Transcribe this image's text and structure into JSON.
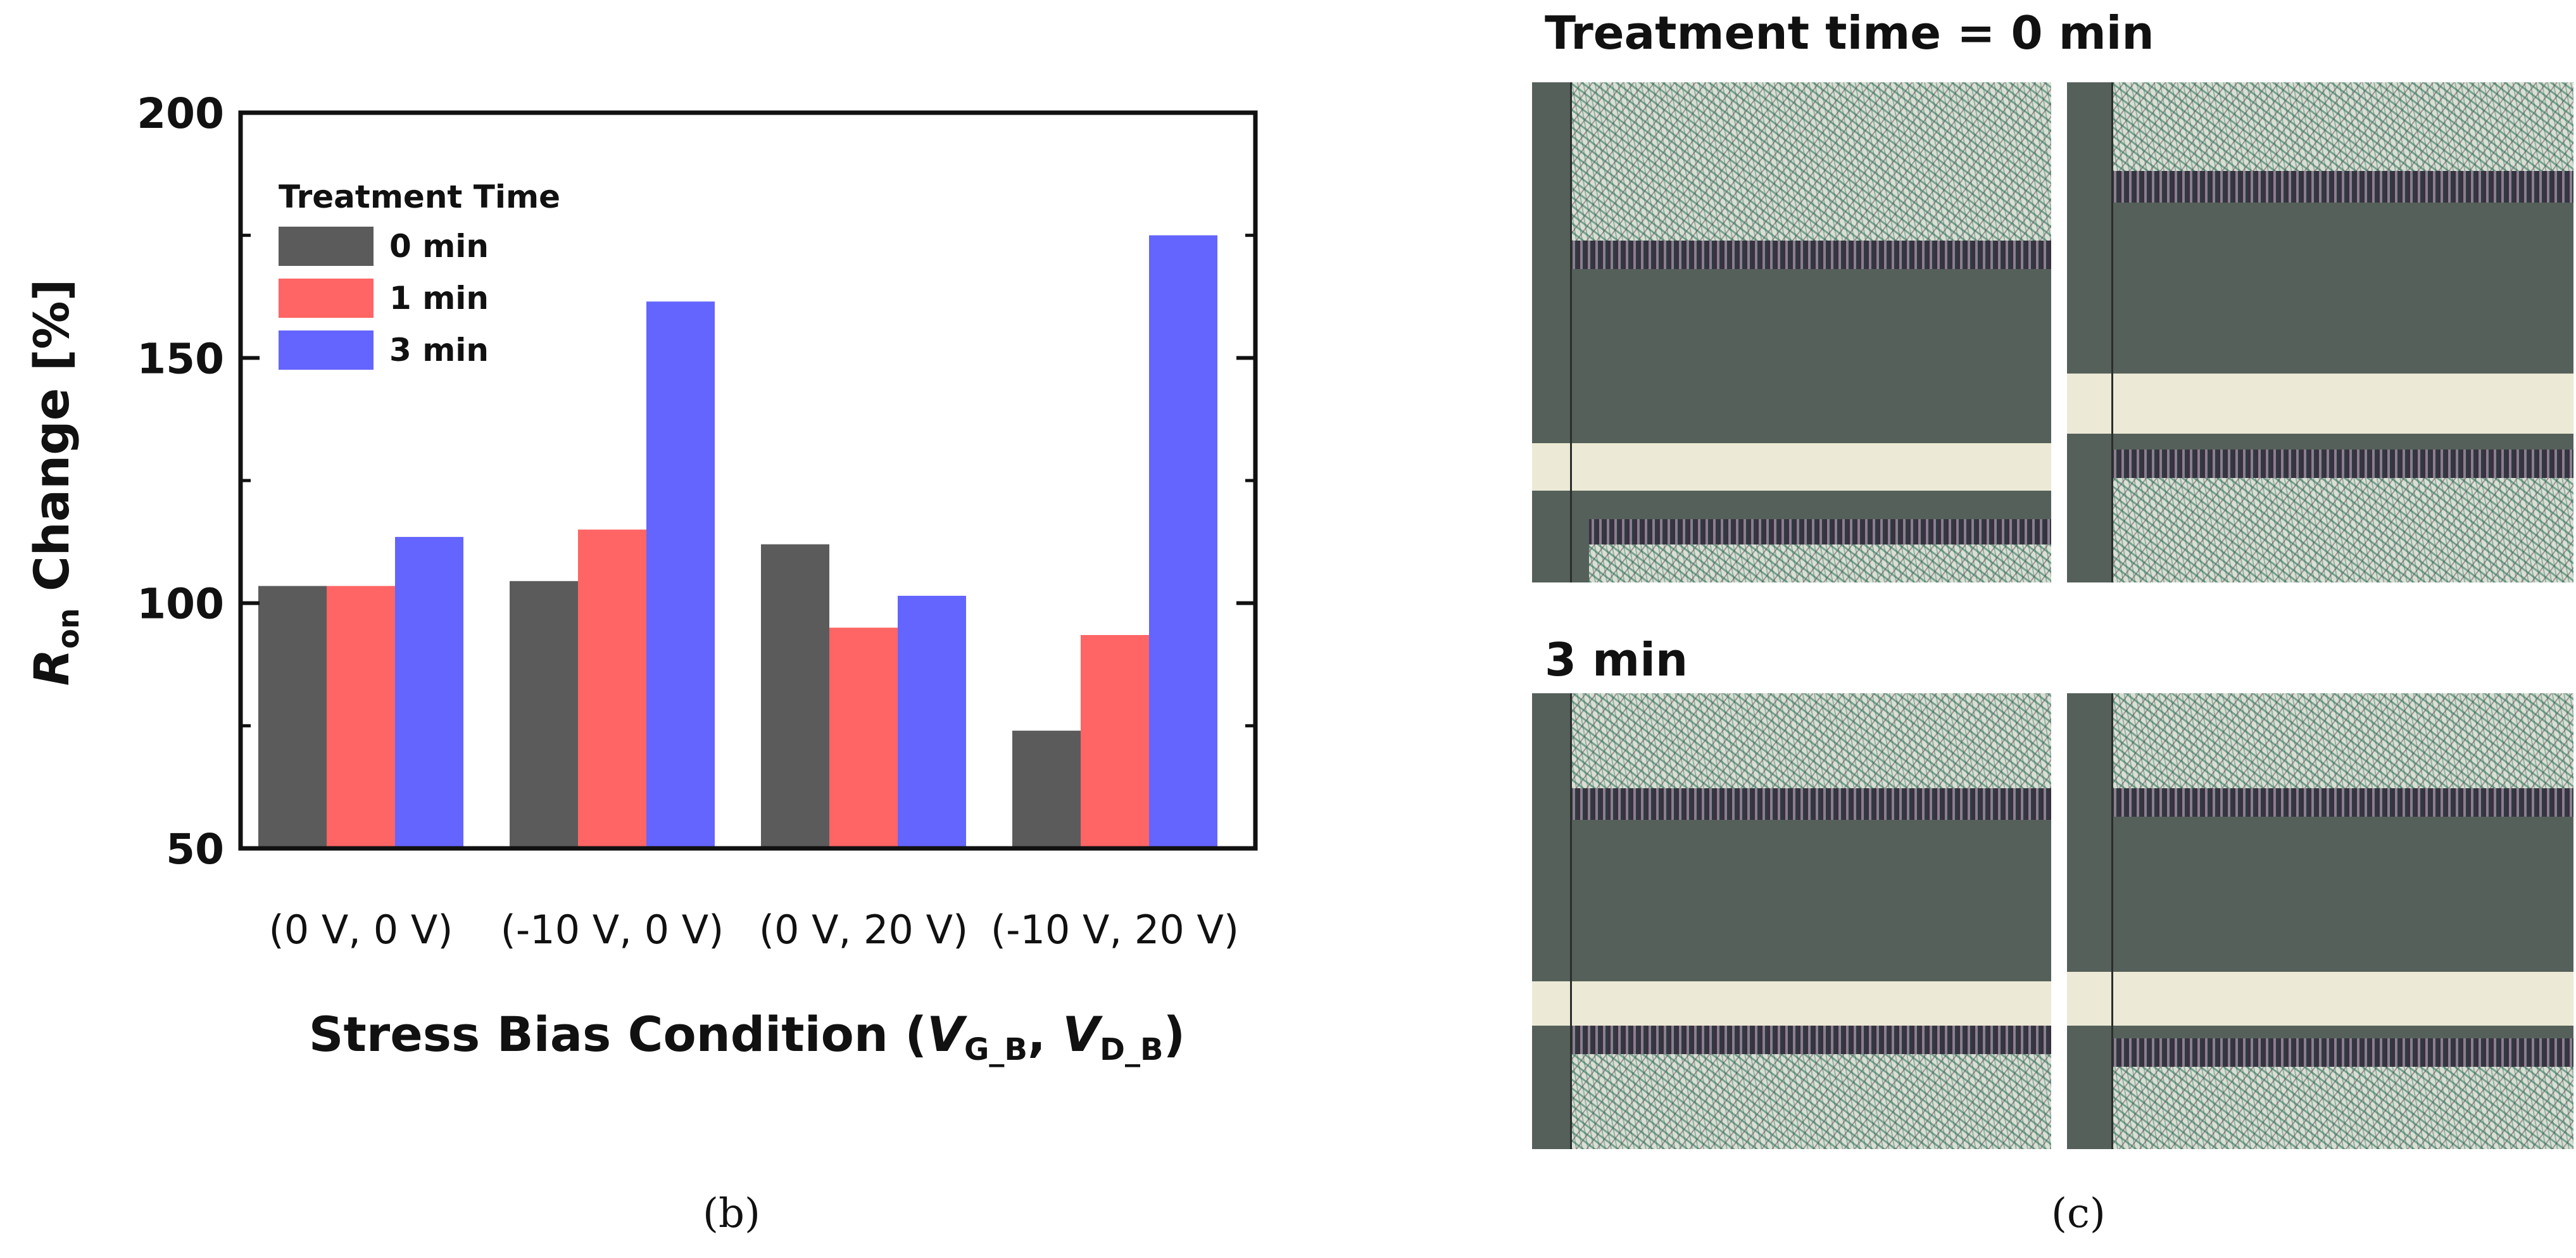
{
  "chart_data": {
    "type": "bar",
    "categories": [
      "(0 V, 0 V)",
      "(-10 V, 0 V)",
      "(0 V, 20 V)",
      "(-10 V, 20 V)"
    ],
    "series": [
      {
        "name": "0 min",
        "color": "#5b5b5b",
        "values": [
          103.5,
          104.5,
          112,
          74
        ]
      },
      {
        "name": "1 min",
        "color": "#ff6565",
        "values": [
          103.5,
          115,
          95,
          93.5
        ]
      },
      {
        "name": "3 min",
        "color": "#6464ff",
        "values": [
          113.5,
          161.5,
          101.5,
          175
        ]
      }
    ],
    "ylim": [
      50,
      200
    ],
    "yticks": [
      50,
      100,
      150,
      200
    ],
    "legend_title": "Treatment Time",
    "legend_position": "top-left",
    "ylabel": {
      "italic": "R",
      "sub": "on",
      "rest": " Change [%]"
    },
    "xlabel": {
      "prefix": "Stress Bias Condition (",
      "v1": "V",
      "s1": "G_B",
      "sep": ", ",
      "v2": "V",
      "s2": "D_B",
      "suffix": ")"
    }
  },
  "captions": {
    "b": "(b)",
    "c": "(c)"
  },
  "panel_c": {
    "title_top": "Treatment time = 0 min",
    "title_bottom": "3 min"
  }
}
